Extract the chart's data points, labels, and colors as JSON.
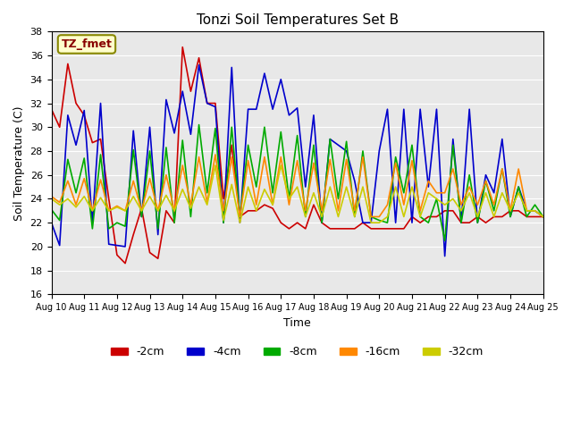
{
  "title": "Tonzi Soil Temperatures Set B",
  "xlabel": "Time",
  "ylabel": "Soil Temperature (C)",
  "annotation": "TZ_fmet",
  "ylim": [
    16,
    38
  ],
  "yticks": [
    16,
    18,
    20,
    22,
    24,
    26,
    28,
    30,
    32,
    34,
    36,
    38
  ],
  "xlim": [
    0,
    30
  ],
  "xtick_labels": [
    "Aug 10",
    "Aug 11",
    "Aug 12",
    "Aug 13",
    "Aug 14",
    "Aug 15",
    "Aug 16",
    "Aug 17",
    "Aug 18",
    "Aug 19",
    "Aug 20",
    "Aug 21",
    "Aug 22",
    "Aug 23",
    "Aug 24",
    "Aug 25"
  ],
  "bg_color": "#e8e8e8",
  "plot_bg": "#e8e8e8",
  "series": {
    "-2cm": {
      "color": "#cc0000",
      "x": [
        0,
        0.5,
        1,
        1.5,
        2,
        2.5,
        3,
        3.5,
        4,
        4.5,
        5,
        5.5,
        6,
        6.5,
        7,
        7.5,
        8,
        8.5,
        9,
        9.5,
        10,
        10.5,
        11,
        11.5,
        12,
        12.5,
        13,
        13.5,
        14,
        14.5,
        15,
        15.5,
        16,
        16.5,
        17,
        17.5,
        18,
        18.5,
        19,
        19.5,
        20,
        20.5,
        21,
        21.5,
        22,
        22.5,
        23,
        23.5,
        24,
        24.5,
        25,
        25.5,
        26,
        26.5,
        27,
        27.5,
        28,
        28.5,
        29,
        29.5,
        30
      ],
      "y": [
        31.5,
        30.0,
        35.3,
        32.0,
        31.0,
        28.7,
        29.0,
        24.0,
        19.3,
        18.6,
        21.0,
        23.2,
        19.5,
        19.0,
        23.0,
        22.0,
        36.7,
        33.0,
        35.8,
        32.0,
        32.0,
        24.0,
        28.5,
        22.5,
        23.0,
        23.0,
        23.5,
        23.2,
        22.0,
        21.5,
        22.0,
        21.5,
        23.5,
        22.0,
        21.5,
        21.5,
        21.5,
        21.5,
        22.0,
        21.5,
        21.5,
        21.5,
        21.5,
        21.5,
        22.5,
        22.0,
        22.5,
        22.5,
        23.0,
        23.0,
        22.0,
        22.0,
        22.5,
        22.0,
        22.5,
        22.5,
        23.0,
        23.0,
        22.5,
        22.5,
        22.5
      ]
    },
    "-4cm": {
      "color": "#0000cc",
      "x": [
        0,
        0.5,
        1,
        1.5,
        2,
        2.5,
        3,
        3.5,
        4,
        4.5,
        5,
        5.5,
        6,
        6.5,
        7,
        7.5,
        8,
        8.5,
        9,
        9.5,
        10,
        10.5,
        11,
        11.5,
        12,
        12.5,
        13,
        13.5,
        14,
        14.5,
        15,
        15.5,
        16,
        16.5,
        17,
        17.5,
        18,
        18.5,
        19,
        19.5,
        20,
        20.5,
        21,
        21.5,
        22,
        22.5,
        23,
        23.5,
        24,
        24.5,
        25,
        25.5,
        26,
        26.5,
        27,
        27.5,
        28,
        28.5,
        29,
        29.5,
        30
      ],
      "y": [
        22.0,
        20.1,
        31.0,
        28.5,
        31.4,
        22.0,
        32.0,
        20.2,
        20.1,
        20.0,
        29.7,
        22.5,
        30.0,
        21.0,
        32.3,
        29.5,
        33.0,
        29.4,
        35.2,
        32.0,
        31.7,
        22.0,
        35.0,
        22.0,
        31.5,
        31.5,
        34.5,
        31.5,
        34.0,
        31.0,
        31.6,
        25.0,
        31.0,
        22.0,
        29.0,
        28.5,
        28.0,
        25.5,
        22.0,
        22.0,
        28.0,
        31.5,
        22.0,
        31.5,
        22.0,
        31.5,
        25.0,
        31.5,
        19.2,
        29.0,
        22.0,
        31.5,
        22.0,
        26.0,
        24.5,
        29.0,
        22.5,
        25.0,
        23.0,
        23.0,
        22.5
      ]
    },
    "-8cm": {
      "color": "#00aa00",
      "x": [
        0,
        0.5,
        1,
        1.5,
        2,
        2.5,
        3,
        3.5,
        4,
        4.5,
        5,
        5.5,
        6,
        6.5,
        7,
        7.5,
        8,
        8.5,
        9,
        9.5,
        10,
        10.5,
        11,
        11.5,
        12,
        12.5,
        13,
        13.5,
        14,
        14.5,
        15,
        15.5,
        16,
        16.5,
        17,
        17.5,
        18,
        18.5,
        19,
        19.5,
        20,
        20.5,
        21,
        21.5,
        22,
        22.5,
        23,
        23.5,
        24,
        24.5,
        25,
        25.5,
        26,
        26.5,
        27,
        27.5,
        28,
        28.5,
        29,
        29.5,
        30
      ],
      "y": [
        23.1,
        22.2,
        27.3,
        24.5,
        27.4,
        21.5,
        27.7,
        21.5,
        22.0,
        21.7,
        28.1,
        22.5,
        28.0,
        21.5,
        28.3,
        22.0,
        28.9,
        22.5,
        30.2,
        24.5,
        29.9,
        22.0,
        30.0,
        22.5,
        28.5,
        25.0,
        30.0,
        24.5,
        29.6,
        24.0,
        29.3,
        22.5,
        28.5,
        22.0,
        29.0,
        24.0,
        28.8,
        22.5,
        28.0,
        22.5,
        22.2,
        22.0,
        27.5,
        24.5,
        28.5,
        22.5,
        22.0,
        24.0,
        20.5,
        28.5,
        22.0,
        26.0,
        22.0,
        25.5,
        23.0,
        26.5,
        22.5,
        25.0,
        22.5,
        23.5,
        22.5
      ]
    },
    "-16cm": {
      "color": "#ff8800",
      "x": [
        0,
        0.5,
        1,
        1.5,
        2,
        2.5,
        3,
        3.5,
        4,
        4.5,
        5,
        5.5,
        6,
        6.5,
        7,
        7.5,
        8,
        8.5,
        9,
        9.5,
        10,
        10.5,
        11,
        11.5,
        12,
        12.5,
        13,
        13.5,
        14,
        14.5,
        15,
        15.5,
        16,
        16.5,
        17,
        17.5,
        18,
        18.5,
        19,
        19.5,
        20,
        20.5,
        21,
        21.5,
        22,
        22.5,
        23,
        23.5,
        24,
        24.5,
        25,
        25.5,
        26,
        26.5,
        27,
        27.5,
        28,
        28.5,
        29,
        29.5,
        30
      ],
      "y": [
        24.2,
        23.7,
        25.5,
        23.5,
        25.7,
        23.0,
        25.6,
        23.0,
        23.4,
        23.0,
        25.5,
        23.0,
        25.7,
        23.0,
        26.0,
        23.0,
        26.8,
        23.5,
        27.5,
        23.7,
        27.7,
        23.0,
        27.5,
        22.5,
        27.2,
        23.5,
        27.5,
        23.5,
        27.5,
        23.5,
        27.2,
        23.0,
        27.0,
        23.0,
        27.3,
        23.0,
        27.3,
        23.0,
        27.5,
        22.5,
        22.5,
        23.5,
        27.0,
        23.5,
        27.2,
        23.0,
        25.5,
        24.5,
        24.5,
        26.5,
        23.5,
        25.0,
        23.5,
        25.5,
        23.5,
        26.5,
        23.0,
        26.5,
        23.0,
        23.0,
        22.5
      ]
    },
    "-32cm": {
      "color": "#cccc00",
      "x": [
        0,
        0.5,
        1,
        1.5,
        2,
        2.5,
        3,
        3.5,
        4,
        4.5,
        5,
        5.5,
        6,
        6.5,
        7,
        7.5,
        8,
        8.5,
        9,
        9.5,
        10,
        10.5,
        11,
        11.5,
        12,
        12.5,
        13,
        13.5,
        14,
        14.5,
        15,
        15.5,
        16,
        16.5,
        17,
        17.5,
        18,
        18.5,
        19,
        19.5,
        20,
        20.5,
        21,
        21.5,
        22,
        22.5,
        23,
        23.5,
        24,
        24.5,
        25,
        25.5,
        26,
        26.5,
        27,
        27.5,
        28,
        28.5,
        29,
        29.5,
        30
      ],
      "y": [
        24.0,
        23.5,
        24.0,
        23.3,
        24.2,
        23.0,
        24.1,
        23.0,
        23.3,
        23.0,
        24.2,
        23.0,
        24.2,
        23.0,
        24.3,
        23.0,
        24.8,
        23.2,
        25.0,
        23.5,
        26.8,
        22.2,
        25.2,
        22.0,
        25.0,
        23.0,
        24.8,
        23.5,
        26.8,
        24.0,
        25.0,
        22.5,
        24.5,
        22.5,
        25.0,
        22.5,
        25.0,
        22.5,
        25.0,
        22.0,
        22.0,
        22.5,
        25.0,
        22.5,
        25.0,
        22.5,
        24.5,
        24.0,
        23.5,
        24.0,
        23.0,
        24.5,
        22.5,
        24.5,
        22.5,
        24.5,
        23.0,
        24.5,
        23.0,
        23.0,
        22.5
      ]
    }
  },
  "legend_labels": [
    "-2cm",
    "-4cm",
    "-8cm",
    "-16cm",
    "-32cm"
  ],
  "legend_colors": [
    "#cc0000",
    "#0000cc",
    "#00aa00",
    "#ff8800",
    "#cccc00"
  ]
}
